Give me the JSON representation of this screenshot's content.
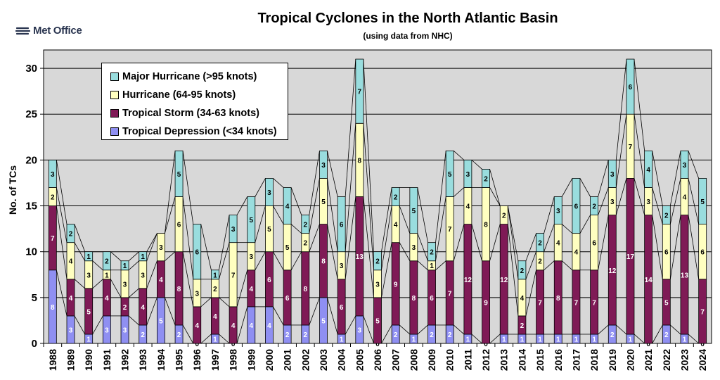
{
  "header": {
    "logo_text": "Met Office",
    "title": "Tropical Cyclones in the North Atlantic Basin",
    "subtitle": "(using data from NHC)"
  },
  "colors": {
    "major_hurricane": "#99ddde",
    "hurricane": "#ffffc0",
    "tropical_storm": "#7f1a56",
    "tropical_depression": "#8f8ff2",
    "plot_background": "#d8d8d8"
  },
  "chart_data": {
    "type": "bar",
    "stacked": true,
    "title": "Tropical Cyclones in the North Atlantic Basin",
    "subtitle": "(using data from NHC)",
    "xlabel": "",
    "ylabel": "No. of TCs",
    "ylim": [
      0,
      32
    ],
    "yticks": [
      0,
      5,
      10,
      15,
      20,
      25,
      30
    ],
    "grid": true,
    "legend_position": "top-left",
    "categories": [
      "1988",
      "1989",
      "1990",
      "1991",
      "1992",
      "1993",
      "1994",
      "1995",
      "1996",
      "1997",
      "1998",
      "1999",
      "2000",
      "2001",
      "2002",
      "2003",
      "2004",
      "2005",
      "2006",
      "2007",
      "2008",
      "2009",
      "2010",
      "2011",
      "2012",
      "2013",
      "2014",
      "2015",
      "2016",
      "2017",
      "2018",
      "2019",
      "2020",
      "2021",
      "2022",
      "2023",
      "2024"
    ],
    "series": [
      {
        "name": "Tropical Depression (<34 knots)",
        "key": "tropical_depression",
        "values": [
          8,
          3,
          1,
          3,
          3,
          2,
          5,
          2,
          0,
          1,
          0,
          4,
          4,
          2,
          2,
          5,
          1,
          3,
          0,
          2,
          1,
          2,
          2,
          1,
          0,
          1,
          1,
          1,
          1,
          1,
          1,
          2,
          1,
          0,
          2,
          1,
          0
        ]
      },
      {
        "name": "Tropical Storm (34-63 knots)",
        "key": "tropical_storm",
        "values": [
          7,
          4,
          5,
          4,
          2,
          4,
          4,
          8,
          4,
          4,
          4,
          4,
          6,
          6,
          8,
          8,
          6,
          13,
          5,
          9,
          8,
          6,
          7,
          12,
          9,
          12,
          2,
          7,
          8,
          7,
          7,
          12,
          17,
          14,
          5,
          13,
          7
        ]
      },
      {
        "name": "Hurricane (64-95 knots)",
        "key": "hurricane",
        "values": [
          2,
          4,
          3,
          1,
          3,
          3,
          3,
          6,
          3,
          2,
          7,
          3,
          5,
          5,
          2,
          5,
          3,
          8,
          3,
          4,
          3,
          1,
          7,
          4,
          8,
          2,
          4,
          2,
          4,
          4,
          6,
          3,
          7,
          3,
          6,
          4,
          6
        ]
      },
      {
        "name": "Major Hurricane (>95 knots)",
        "key": "major_hurricane",
        "values": [
          3,
          2,
          1,
          2,
          1,
          1,
          0,
          5,
          6,
          1,
          3,
          5,
          3,
          4,
          2,
          3,
          6,
          7,
          2,
          2,
          5,
          2,
          5,
          3,
          2,
          0,
          2,
          2,
          3,
          6,
          2,
          3,
          6,
          4,
          2,
          3,
          5
        ]
      }
    ],
    "legend_order": [
      "major_hurricane",
      "hurricane",
      "tropical_storm",
      "tropical_depression"
    ]
  }
}
